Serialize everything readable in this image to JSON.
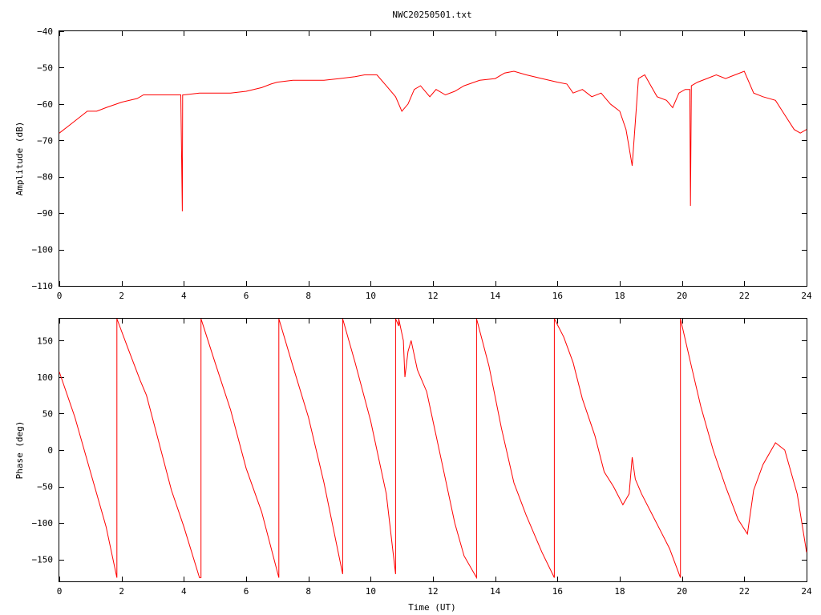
{
  "title": "NWC20250501.txt",
  "colors": {
    "series": "#ff0000",
    "axis": "#000000",
    "background": "#ffffff"
  },
  "chart_data": [
    {
      "type": "line",
      "ylabel": "Amplitude (dB)",
      "xlabel": "",
      "xlim": [
        0,
        24
      ],
      "ylim": [
        -110,
        -40
      ],
      "xticks": [
        0,
        2,
        4,
        6,
        8,
        10,
        12,
        14,
        16,
        18,
        20,
        22,
        24
      ],
      "yticks": [
        -110,
        -100,
        -90,
        -80,
        -70,
        -60,
        -50,
        -40
      ],
      "grid": false,
      "series": [
        {
          "x": [
            0,
            0.3,
            0.6,
            0.9,
            1.2,
            1.5,
            2,
            2.5,
            2.7,
            3,
            3.5,
            3.9,
            3.95,
            3.96,
            4.0,
            4.5,
            5,
            5.5,
            6,
            6.5,
            6.8,
            7,
            7.5,
            8,
            8.5,
            9,
            9.5,
            9.8,
            10.2,
            10.5,
            10.8,
            11.0,
            11.2,
            11.4,
            11.6,
            11.9,
            12.1,
            12.4,
            12.7,
            13.0,
            13.5,
            14.0,
            14.3,
            14.6,
            15.0,
            15.5,
            16.0,
            16.3,
            16.5,
            16.8,
            17.1,
            17.4,
            17.7,
            18.0,
            18.2,
            18.3,
            18.4,
            18.5,
            18.6,
            18.8,
            19.0,
            19.2,
            19.5,
            19.7,
            19.9,
            20.1,
            20.25,
            20.27,
            20.3,
            20.5,
            20.8,
            21.1,
            21.4,
            21.7,
            22.0,
            22.1,
            22.3,
            22.6,
            23.0,
            23.3,
            23.6,
            23.8,
            24
          ],
          "y": [
            -68,
            -66,
            -64,
            -62,
            -62,
            -61,
            -59.5,
            -58.5,
            -57.5,
            -57.5,
            -57.5,
            -57.5,
            -89.5,
            -57.5,
            -57.5,
            -57,
            -57,
            -57,
            -56.5,
            -55.5,
            -54.5,
            -54,
            -53.5,
            -53.5,
            -53.5,
            -53,
            -52.5,
            -52,
            -52,
            -55,
            -58,
            -62,
            -60,
            -56,
            -55,
            -58,
            -56,
            -57.5,
            -56.5,
            -55,
            -53.5,
            -53,
            -51.5,
            -51,
            -52,
            -53,
            -54,
            -54.5,
            -57,
            -56,
            -58,
            -57,
            -60,
            -62,
            -67,
            -72,
            -77,
            -65,
            -53,
            -52,
            -55,
            -58,
            -59,
            -61,
            -57,
            -56,
            -56,
            -88,
            -55,
            -54,
            -53,
            -52,
            -53,
            -52,
            -51,
            -53,
            -57,
            -58,
            -59,
            -63,
            -67,
            -68,
            -67
          ]
        }
      ]
    },
    {
      "type": "line",
      "ylabel": "Phase (deg)",
      "xlabel": "Time (UT)",
      "xlim": [
        0,
        24
      ],
      "ylim": [
        -180,
        180
      ],
      "xticks": [
        0,
        2,
        4,
        6,
        8,
        10,
        12,
        14,
        16,
        18,
        20,
        22,
        24
      ],
      "yticks": [
        -150,
        -100,
        -50,
        0,
        50,
        100,
        150
      ],
      "grid": false,
      "series": [
        {
          "x": [
            0,
            0.5,
            1.0,
            1.5,
            1.85,
            1.85,
            2.2,
            2.6,
            2.8,
            3.2,
            3.6,
            4.0,
            4.5,
            4.55,
            4.55,
            5.0,
            5.5,
            6.0,
            6.5,
            7.05,
            7.05,
            7.5,
            8.0,
            8.5,
            9.1,
            9.1,
            9.5,
            10.0,
            10.5,
            10.8,
            10.8,
            10.9,
            10.9,
            11.05,
            11.1,
            11.2,
            11.3,
            11.5,
            11.8,
            12.0,
            12.3,
            12.7,
            13.0,
            13.4,
            13.4,
            13.8,
            14.2,
            14.6,
            15.0,
            15.5,
            15.9,
            15.9,
            16.2,
            16.5,
            16.8,
            17.2,
            17.5,
            17.8,
            18.1,
            18.3,
            18.4,
            18.5,
            18.7,
            19.0,
            19.3,
            19.6,
            19.95,
            19.95,
            20.3,
            20.6,
            21.0,
            21.4,
            21.8,
            22.1,
            22.3,
            22.6,
            23.0,
            23.3,
            23.7,
            24
          ],
          "y": [
            107,
            45,
            -30,
            -105,
            -175,
            180,
            140,
            95,
            75,
            10,
            -55,
            -105,
            -175,
            -175,
            180,
            120,
            55,
            -25,
            -85,
            -175,
            180,
            115,
            45,
            -45,
            -170,
            180,
            120,
            40,
            -60,
            -170,
            180,
            170,
            180,
            150,
            100,
            135,
            150,
            110,
            80,
            40,
            -20,
            -100,
            -145,
            -175,
            180,
            115,
            30,
            -45,
            -90,
            -140,
            -175,
            180,
            155,
            120,
            70,
            20,
            -30,
            -50,
            -75,
            -60,
            -10,
            -40,
            -60,
            -85,
            -110,
            -135,
            -175,
            180,
            115,
            60,
            0,
            -50,
            -95,
            -115,
            -55,
            -20,
            10,
            0,
            -60,
            -140
          ]
        }
      ]
    }
  ]
}
